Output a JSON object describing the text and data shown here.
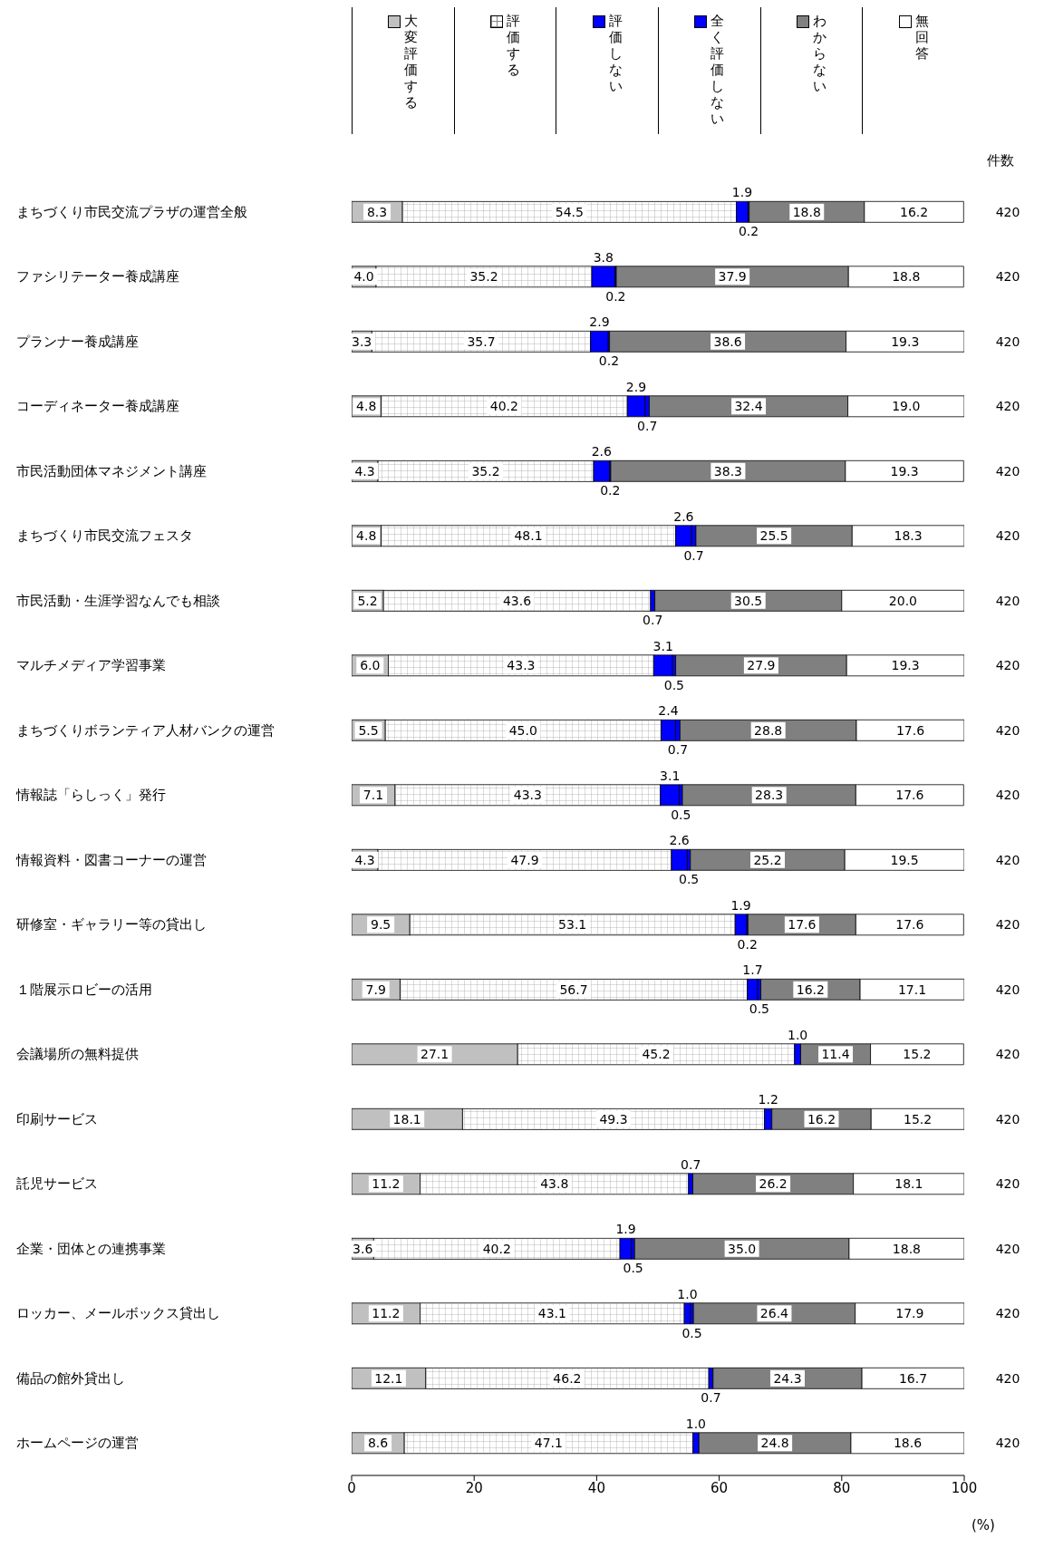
{
  "chart_data": {
    "type": "bar",
    "orientation": "horizontal",
    "stacked": true,
    "legend": "top",
    "grid": false,
    "xlabel": "(%)",
    "xlim": [
      0,
      100
    ],
    "xticks": [
      0,
      20,
      40,
      60,
      80,
      100
    ],
    "categories": [
      "まちづくり市民交流プラザの運営全般",
      "ファシリテーター養成講座",
      "プランナー養成講座",
      "コーディネーター養成講座",
      "市民活動団体マネジメント講座",
      "まちづくり市民交流フェスタ",
      "市民活動・生涯学習なんでも相談",
      "マルチメディア学習事業",
      "まちづくりボランティア人材バンクの運営",
      "情報誌「らしっく」発行",
      "情報資料・図書コーナーの運営",
      "研修室・ギャラリー等の貸出し",
      "１階展示ロビーの活用",
      "会議場所の無料提供",
      "印刷サービス",
      "託児サービス",
      "企業・団体との連携事業",
      "ロッカー、メールボックス貸出し",
      "備品の館外貸出し",
      "ホームページの運営"
    ],
    "series": [
      {
        "name": "大変評価する",
        "color": "#c0c0c0",
        "values": [
          8.3,
          4.0,
          3.3,
          4.8,
          4.3,
          4.8,
          5.2,
          6.0,
          5.5,
          7.1,
          4.3,
          9.5,
          7.9,
          27.1,
          18.1,
          11.2,
          3.6,
          11.2,
          12.1,
          8.6
        ],
        "value_labels": [
          "8.3",
          "4.0",
          "3.3",
          "4.8",
          "4.3",
          "4.8",
          "5.2",
          "6.0",
          "5.5",
          "7.1",
          "4.3",
          "9.5",
          "7.9",
          "27.1",
          "18.1",
          "11.2",
          "3.6",
          "11.2",
          "12.1",
          "8.6"
        ]
      },
      {
        "name": "評価する",
        "color": "#ffffff",
        "values": [
          54.5,
          35.2,
          35.7,
          40.2,
          35.2,
          48.1,
          43.6,
          43.3,
          45.0,
          43.3,
          47.9,
          53.1,
          56.7,
          45.2,
          49.3,
          43.8,
          40.2,
          43.1,
          46.2,
          47.1
        ],
        "value_labels": [
          "54.5",
          "35.2",
          "35.7",
          "40.2",
          "35.2",
          "48.1",
          "43.6",
          "43.3",
          "45.0",
          "43.3",
          "47.9",
          "53.1",
          "56.7",
          "45.2",
          "49.3",
          "43.8",
          "40.2",
          "43.1",
          "46.2",
          "47.1"
        ]
      },
      {
        "name": "評価しない",
        "color": "#0000ff",
        "values": [
          1.9,
          3.8,
          2.9,
          2.9,
          2.6,
          2.6,
          0,
          3.1,
          2.4,
          3.1,
          2.6,
          1.9,
          1.7,
          1.0,
          1.2,
          0.7,
          1.9,
          1.0,
          0,
          1.0
        ],
        "value_labels": [
          "1.9",
          "3.8",
          "2.9",
          "2.9",
          "2.6",
          "2.6",
          null,
          "3.1",
          "2.4",
          "3.1",
          "2.6",
          "1.9",
          "1.7",
          "1.0",
          "1.2",
          "0.7",
          "1.9",
          "1.0",
          null,
          "1.0"
        ]
      },
      {
        "name": "全く評価しない",
        "color": "#0000ff",
        "values": [
          0.2,
          0.2,
          0.2,
          0.7,
          0.2,
          0.7,
          0.7,
          0.5,
          0.7,
          0.5,
          0.5,
          0.2,
          0.5,
          0,
          0,
          0,
          0.5,
          0.5,
          0.7,
          0
        ],
        "value_labels": [
          "0.2",
          "0.2",
          "0.2",
          "0.7",
          "0.2",
          "0.7",
          "0.7",
          "0.5",
          "0.7",
          "0.5",
          "0.5",
          "0.2",
          "0.5",
          null,
          null,
          null,
          "0.5",
          "0.5",
          "0.7",
          null
        ]
      },
      {
        "name": "わからない",
        "color": "#808080",
        "values": [
          18.8,
          37.9,
          38.6,
          32.4,
          38.3,
          25.5,
          30.5,
          27.9,
          28.8,
          28.3,
          25.2,
          17.6,
          16.2,
          11.4,
          16.2,
          26.2,
          35.0,
          26.4,
          24.3,
          24.8
        ],
        "value_labels": [
          "18.8",
          "37.9",
          "38.6",
          "32.4",
          "38.3",
          "25.5",
          "30.5",
          "27.9",
          "28.8",
          "28.3",
          "25.2",
          "17.6",
          "16.2",
          "11.4",
          "16.2",
          "26.2",
          "35.0",
          "26.4",
          "24.3",
          "24.8"
        ]
      },
      {
        "name": "無回答",
        "color": "#ffffff",
        "values": [
          16.2,
          18.8,
          19.3,
          19.0,
          19.3,
          18.3,
          20.0,
          19.3,
          17.6,
          17.6,
          19.5,
          17.6,
          17.1,
          15.2,
          15.2,
          18.1,
          18.8,
          17.9,
          16.7,
          18.6
        ],
        "value_labels": [
          "16.2",
          "18.8",
          "19.3",
          "19.0",
          "19.3",
          "18.3",
          "20.0",
          "19.3",
          "17.6",
          "17.6",
          "19.5",
          "17.6",
          "17.1",
          "15.2",
          "15.2",
          "18.1",
          "18.8",
          "17.9",
          "16.7",
          "18.6"
        ]
      }
    ],
    "annotations": [
      "件数",
      "420",
      "420",
      "420",
      "420",
      "420",
      "420",
      "420",
      "420",
      "420",
      "420",
      "420",
      "420",
      "420",
      "420",
      "420",
      "420",
      "420",
      "420",
      "420",
      "420"
    ]
  }
}
